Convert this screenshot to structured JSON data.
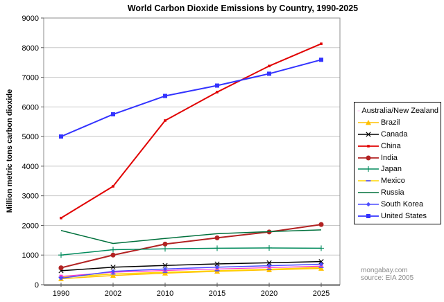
{
  "credits": {
    "line1": "mongabay.com",
    "line2": "source: EIA 2005"
  },
  "chart_data": {
    "type": "line",
    "title": "World Carbon Dioxide Emissions by Country, 1990-2025",
    "xlabel": "",
    "ylabel": "Million metric tons carbon dioxide",
    "categories": [
      "1990",
      "2002",
      "2010",
      "2015",
      "2020",
      "2025"
    ],
    "ylim": [
      0,
      9000
    ],
    "ytick_step": 1000,
    "grid": true,
    "legend_position": "right",
    "series": [
      {
        "name": "Australia/New Zealand",
        "color": "#FF33CC",
        "marker": "square",
        "marker_size": 2.4,
        "line_width": 1.2,
        "values": [
          280,
          420,
          480,
          530,
          575,
          625
        ]
      },
      {
        "name": "Brazil",
        "color": "#FFC000",
        "marker": "triangle",
        "marker_size": 4,
        "line_width": 1.5,
        "values": [
          200,
          310,
          390,
          450,
          500,
          550
        ]
      },
      {
        "name": "Canada",
        "color": "#000000",
        "marker": "x",
        "marker_size": 3.2,
        "line_width": 1.5,
        "values": [
          470,
          590,
          650,
          700,
          740,
          780
        ]
      },
      {
        "name": "China",
        "color": "#E10000",
        "marker": "square",
        "marker_size": 1.8,
        "line_width": 2,
        "values": [
          2250,
          3320,
          5540,
          6500,
          7380,
          8130
        ]
      },
      {
        "name": "India",
        "color": "#B22222",
        "marker": "circle",
        "marker_size": 3.5,
        "line_width": 2,
        "values": [
          570,
          1000,
          1370,
          1580,
          1780,
          2030
        ]
      },
      {
        "name": "Japan",
        "color": "#008A5C",
        "marker": "plus",
        "marker_size": 4,
        "line_width": 1.5,
        "values": [
          1000,
          1180,
          1210,
          1230,
          1240,
          1230
        ]
      },
      {
        "name": "Mexico",
        "color": "#FFD500",
        "marker": "dash",
        "marker_size": 3.5,
        "line_width": 1.5,
        "marker_color": "#4444FF",
        "values": [
          250,
          360,
          420,
          470,
          520,
          585
        ]
      },
      {
        "name": "Russia",
        "color": "#00703C",
        "marker": "none",
        "marker_size": 0,
        "line_width": 1.5,
        "values": [
          1830,
          1390,
          1560,
          1720,
          1790,
          1850
        ]
      },
      {
        "name": "South Korea",
        "color": "#4D4DFF",
        "marker": "diamond",
        "marker_size": 3.2,
        "line_width": 1.5,
        "values": [
          220,
          450,
          530,
          590,
          640,
          690
        ]
      },
      {
        "name": "United States",
        "color": "#3333FF",
        "marker": "square",
        "marker_size": 3,
        "line_width": 2,
        "values": [
          5000,
          5750,
          6370,
          6720,
          7120,
          7590
        ]
      }
    ]
  }
}
